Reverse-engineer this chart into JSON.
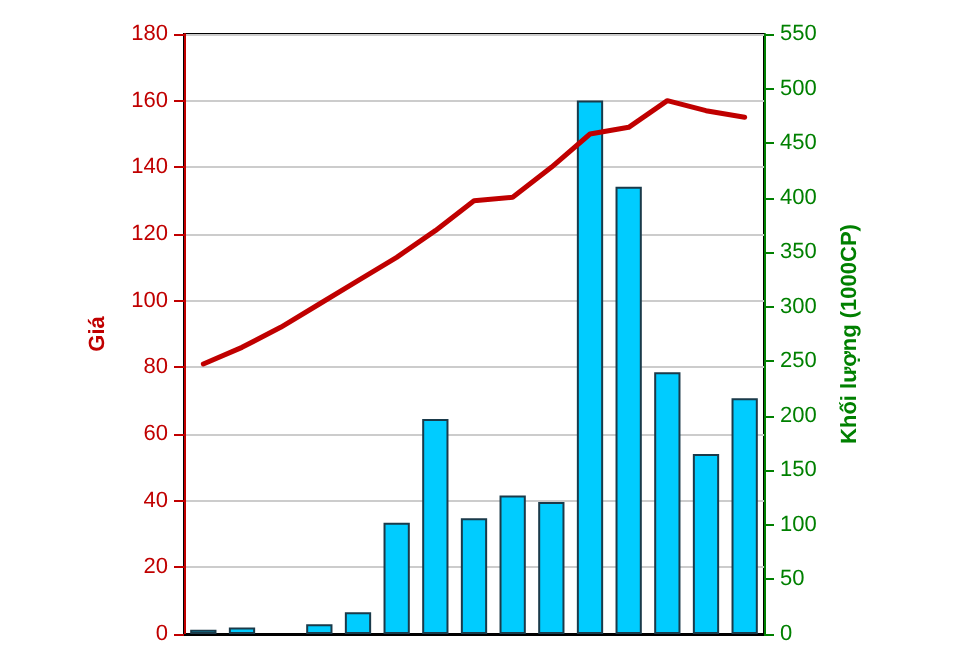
{
  "chart_data": {
    "type": "bar",
    "ylabel": "Giá",
    "y2label": "Khối lượng (1000CP)",
    "categories": [
      null,
      null,
      null,
      null,
      null,
      null,
      null,
      null,
      null,
      null,
      null,
      null,
      null,
      null,
      null
    ],
    "series": [
      {
        "axis": "y2",
        "color": "#00ccff",
        "values": [
          4,
          6,
          0,
          9,
          20,
          102,
          197,
          106,
          127,
          121,
          489,
          410,
          240,
          165,
          216
        ]
      },
      {
        "type": "line",
        "axis": "y",
        "color": "#c00000",
        "values": [
          81,
          86,
          92,
          99,
          106,
          113,
          121,
          130,
          131,
          140,
          150,
          152,
          160,
          157,
          155
        ]
      }
    ],
    "ylim": [
      0,
      180
    ],
    "yticks": [
      0,
      20,
      40,
      60,
      80,
      100,
      120,
      140,
      160,
      180
    ],
    "y2lim": [
      0,
      550
    ],
    "y2ticks": [
      0,
      50,
      100,
      150,
      200,
      250,
      300,
      350,
      400,
      450,
      500,
      550
    ],
    "grid": "y",
    "marker": "none",
    "line_style": "solid"
  }
}
